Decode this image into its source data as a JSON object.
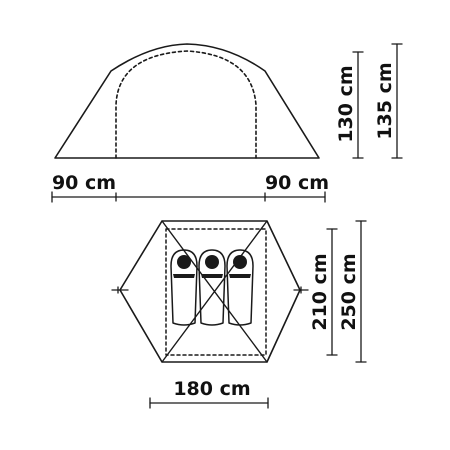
{
  "side_view": {
    "height_inner": "130 cm",
    "height_outer": "135 cm",
    "vestibule_left": "90 cm",
    "vestibule_right": "90 cm"
  },
  "floor_plan": {
    "width": "180 cm",
    "length_inner": "210 cm",
    "length_outer": "250 cm",
    "sleeping_bag_count": 3
  }
}
